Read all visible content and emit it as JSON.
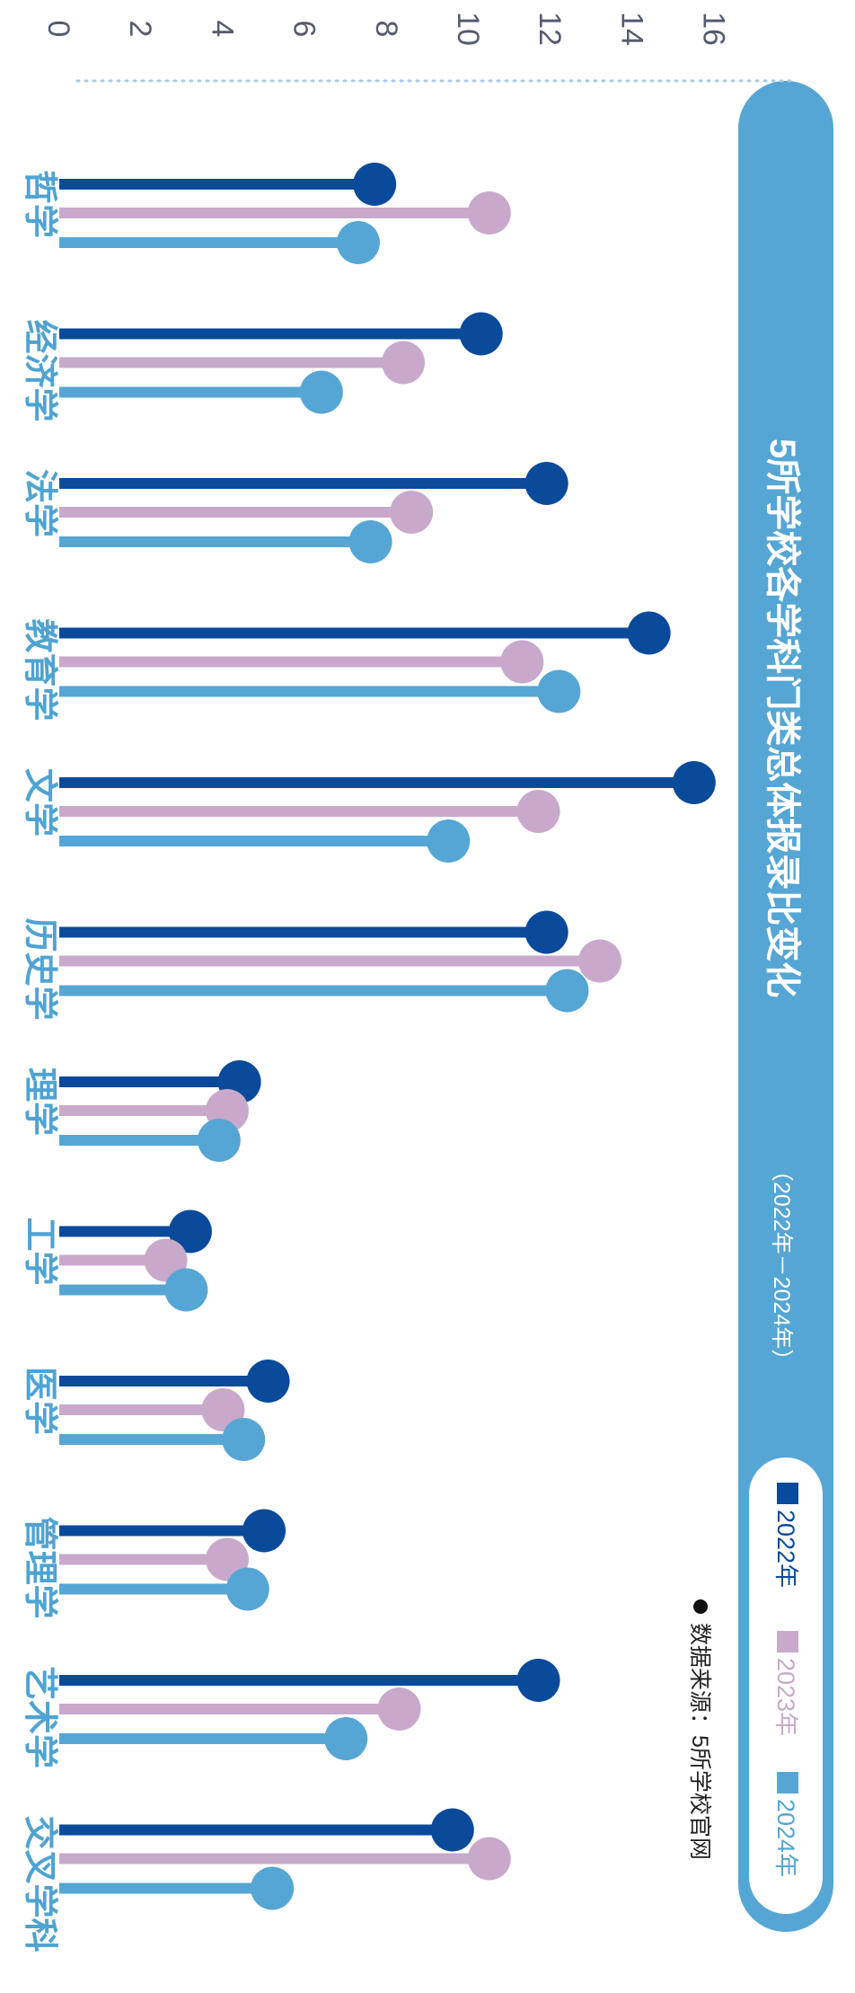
{
  "chart_data": {
    "type": "lollipop",
    "title": "5所学校各学科门类总体报录比变化",
    "subtitle": "（2022年－2024年）",
    "source": "数据来源：5所学校官网",
    "axis": {
      "ticks": [
        0,
        2,
        4,
        6,
        8,
        10,
        12,
        14,
        16
      ],
      "range": [
        0,
        16
      ],
      "orientation": "rotated-90-clockwise"
    },
    "categories": [
      "哲学",
      "经济学",
      "法学",
      "教育学",
      "文学",
      "历史学",
      "理学",
      "工学",
      "医学",
      "管理学",
      "艺术学",
      "交叉学科"
    ],
    "series": [
      {
        "name": "2022年",
        "color": "#0a4a9a",
        "values": [
          7.7,
          10.3,
          11.9,
          14.4,
          15.5,
          11.9,
          4.4,
          3.2,
          5.1,
          5.0,
          11.7,
          9.6
        ]
      },
      {
        "name": "2023年",
        "color": "#c8a9cb",
        "values": [
          10.5,
          8.4,
          8.6,
          11.3,
          11.7,
          13.2,
          4.1,
          2.6,
          4.0,
          4.1,
          8.3,
          10.5
        ]
      },
      {
        "name": "2024年",
        "color": "#55a6d4",
        "values": [
          7.3,
          6.4,
          7.6,
          12.2,
          9.5,
          12.4,
          3.9,
          3.1,
          4.5,
          4.6,
          7.0,
          5.2
        ]
      }
    ],
    "legend_position": "bottom-right",
    "grid": false
  },
  "colors": {
    "banner": "#55a6d4",
    "axis_dots": "#a9cbe6"
  }
}
